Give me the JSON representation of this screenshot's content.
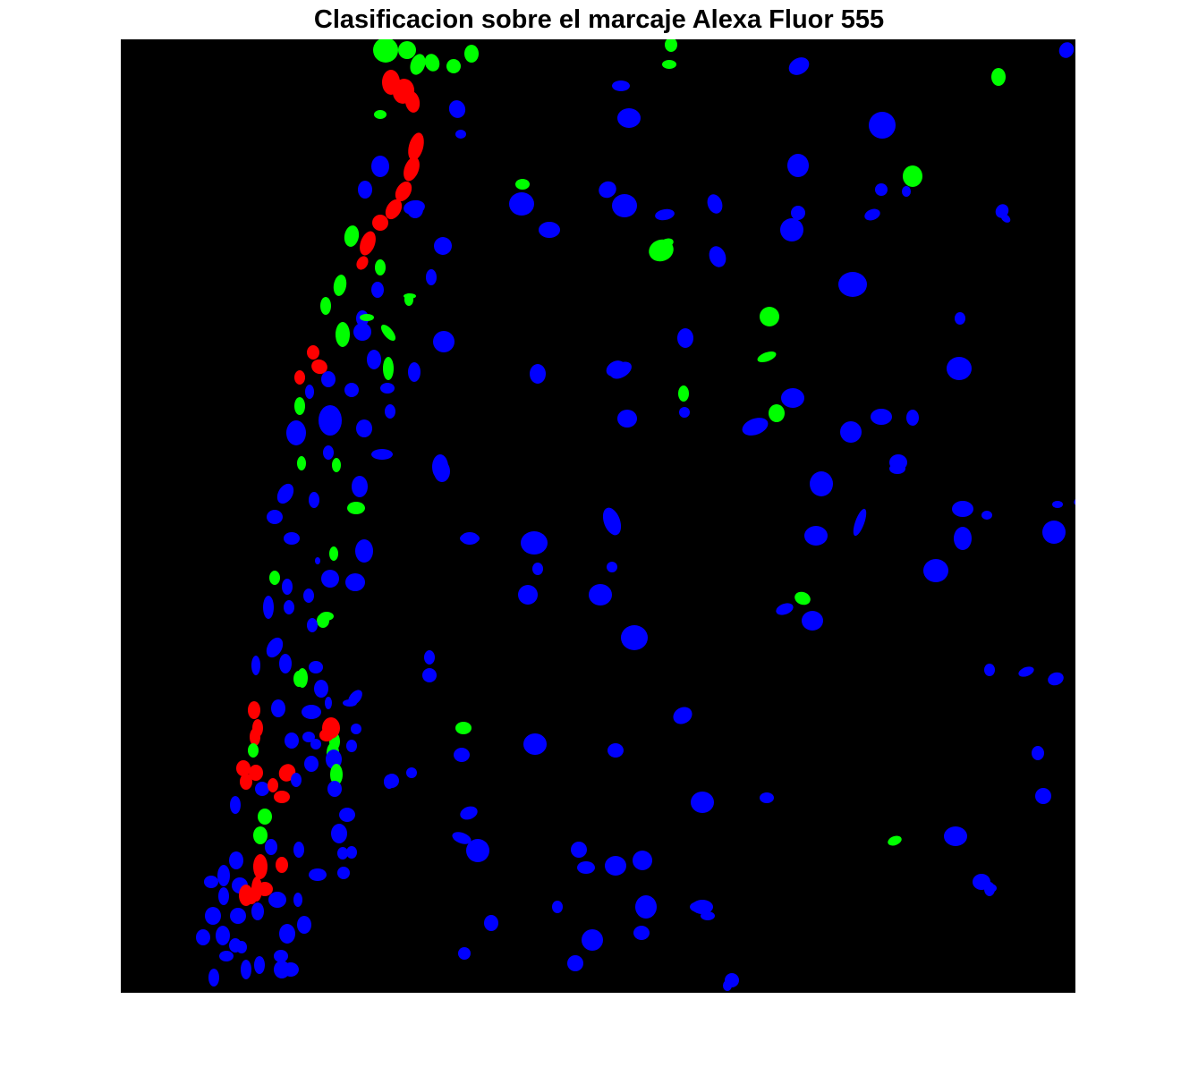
{
  "figure": {
    "title": "Clasificacion sobre el marcaje Alexa Fluor 555"
  },
  "image": {
    "background_color": "#000000",
    "classes": [
      {
        "color": "#ff0000"
      },
      {
        "color": "#00ff00"
      },
      {
        "color": "#0000ff"
      }
    ]
  }
}
